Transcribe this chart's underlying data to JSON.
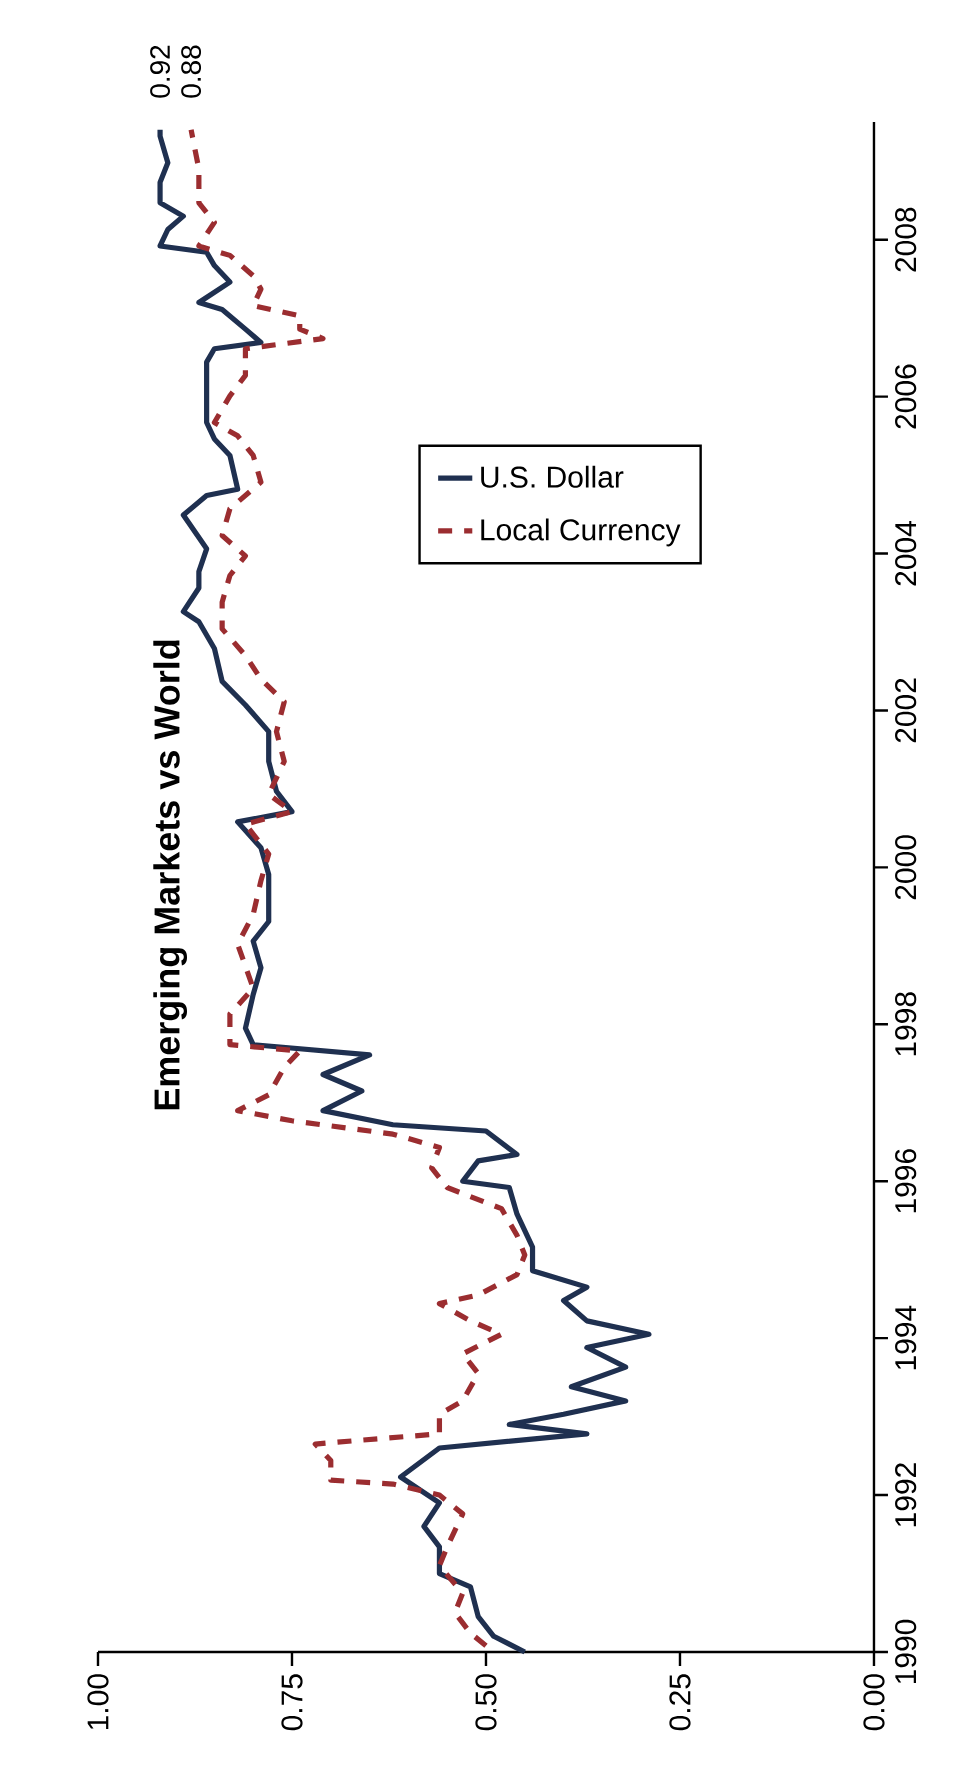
{
  "chart_data": {
    "type": "line",
    "title": "Emerging Markets vs World",
    "xlim": [
      1,
      0
    ],
    "xticks": [
      {
        "value": 1,
        "label": "1.00"
      },
      {
        "value": 0.75,
        "label": "0.75"
      },
      {
        "value": 0.5,
        "label": "0.50"
      },
      {
        "value": 0.25,
        "label": "0.25"
      },
      {
        "value": 0,
        "label": "0.00"
      }
    ],
    "ylim": [
      1990,
      2009.5
    ],
    "yticks": [
      1990,
      1992,
      1994,
      1996,
      1998,
      2000,
      2002,
      2004,
      2006,
      2008
    ],
    "legend": "top",
    "series": [
      {
        "name": "U.S. Dollar",
        "color": "#1f3050",
        "line_style": "solid",
        "values": [
          1990.0,
          1990.2,
          1990.45,
          1990.83,
          1991.0,
          1991.34,
          1991.6,
          1991.9,
          1992.23,
          1992.6,
          1992.78,
          1992.9,
          1993.03,
          1993.2,
          1993.38,
          1993.63,
          1993.88,
          1994.05,
          1994.22,
          1994.48,
          1994.65,
          1994.86,
          1995.16,
          1995.58,
          1995.92,
          1996.0,
          1996.26,
          1996.34,
          1996.64,
          1996.72,
          1996.9,
          1997.15,
          1997.36,
          1997.61,
          1997.74,
          1997.95,
          1998.38,
          1998.72,
          1999.06,
          1999.31,
          1999.91,
          2000.25,
          2000.58,
          2000.71,
          2000.97,
          2001.35,
          2001.73,
          2002.07,
          2002.37,
          2002.79,
          2003.13,
          2003.26,
          2003.56,
          2003.77,
          2004.06,
          2004.49,
          2004.74,
          2004.82,
          2005.25,
          2005.46,
          2005.67,
          2006.44,
          2006.61,
          2006.69,
          2006.86,
          2007.11,
          2007.2,
          2007.46,
          2007.67,
          2007.84,
          2007.92,
          2008.13,
          2008.3,
          2008.47,
          2008.73,
          2008.98,
          2009.32,
          2009.4
        ],
        "x": [
          0.45,
          0.49,
          0.51,
          0.52,
          0.56,
          0.56,
          0.58,
          0.56,
          0.61,
          0.56,
          0.37,
          0.47,
          0.4,
          0.32,
          0.39,
          0.32,
          0.37,
          0.29,
          0.37,
          0.4,
          0.37,
          0.44,
          0.44,
          0.46,
          0.47,
          0.53,
          0.51,
          0.46,
          0.5,
          0.62,
          0.71,
          0.66,
          0.71,
          0.65,
          0.8,
          0.81,
          0.8,
          0.79,
          0.8,
          0.78,
          0.78,
          0.79,
          0.82,
          0.75,
          0.77,
          0.78,
          0.78,
          0.81,
          0.84,
          0.85,
          0.87,
          0.89,
          0.87,
          0.87,
          0.86,
          0.89,
          0.86,
          0.82,
          0.83,
          0.85,
          0.86,
          0.86,
          0.85,
          0.79,
          0.81,
          0.84,
          0.87,
          0.83,
          0.85,
          0.86,
          0.92,
          0.91,
          0.89,
          0.92,
          0.92,
          0.91,
          0.92,
          0.92
        ]
      },
      {
        "name": "Local Currency",
        "color": "#9b2d30",
        "line_style": "dashed",
        "values": [
          1990.08,
          1990.24,
          1990.5,
          1990.75,
          1991.1,
          1991.34,
          1991.76,
          1992.0,
          1992.14,
          1992.19,
          1992.44,
          1992.65,
          1992.7,
          1992.78,
          1993.03,
          1993.2,
          1993.55,
          1993.8,
          1994.05,
          1994.22,
          1994.44,
          1994.55,
          1994.81,
          1995.06,
          1995.31,
          1995.65,
          1995.92,
          1996.17,
          1996.43,
          1996.6,
          1996.77,
          1996.9,
          1997.1,
          1997.45,
          1997.66,
          1997.74,
          1998.13,
          1998.46,
          1999.02,
          1999.4,
          1999.83,
          2000.17,
          2000.55,
          2000.71,
          2000.93,
          2001.35,
          2001.73,
          2002.11,
          2002.4,
          2002.7,
          2003.04,
          2003.38,
          2003.72,
          2003.97,
          2004.23,
          2004.57,
          2004.91,
          2005.25,
          2005.5,
          2005.67,
          2006.01,
          2006.27,
          2006.61,
          2006.74,
          2006.86,
          2007.03,
          2007.16,
          2007.37,
          2007.54,
          2007.8,
          2007.92,
          2008.22,
          2008.47,
          2008.9,
          2009.4
        ],
        "x": [
          0.5,
          0.52,
          0.54,
          0.53,
          0.56,
          0.55,
          0.53,
          0.56,
          0.62,
          0.7,
          0.7,
          0.72,
          0.66,
          0.56,
          0.56,
          0.53,
          0.51,
          0.53,
          0.48,
          0.52,
          0.56,
          0.51,
          0.46,
          0.45,
          0.46,
          0.48,
          0.55,
          0.57,
          0.56,
          0.62,
          0.75,
          0.82,
          0.78,
          0.76,
          0.74,
          0.83,
          0.83,
          0.8,
          0.82,
          0.8,
          0.79,
          0.78,
          0.81,
          0.75,
          0.78,
          0.76,
          0.77,
          0.76,
          0.79,
          0.81,
          0.84,
          0.84,
          0.83,
          0.81,
          0.84,
          0.83,
          0.79,
          0.8,
          0.82,
          0.85,
          0.83,
          0.81,
          0.81,
          0.71,
          0.74,
          0.74,
          0.8,
          0.79,
          0.8,
          0.83,
          0.87,
          0.85,
          0.87,
          0.87,
          0.88
        ]
      }
    ],
    "annotations": [
      {
        "text": "0.92",
        "x": 0.92,
        "y": 2009.4
      },
      {
        "text": "0.88",
        "x": 0.88,
        "y": 2009.4
      }
    ]
  }
}
